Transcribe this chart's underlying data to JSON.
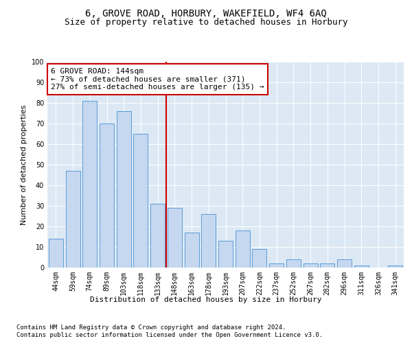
{
  "title1": "6, GROVE ROAD, HORBURY, WAKEFIELD, WF4 6AQ",
  "title2": "Size of property relative to detached houses in Horbury",
  "xlabel": "Distribution of detached houses by size in Horbury",
  "ylabel": "Number of detached properties",
  "categories": [
    "44sqm",
    "59sqm",
    "74sqm",
    "89sqm",
    "103sqm",
    "118sqm",
    "133sqm",
    "148sqm",
    "163sqm",
    "178sqm",
    "193sqm",
    "207sqm",
    "222sqm",
    "237sqm",
    "252sqm",
    "267sqm",
    "282sqm",
    "296sqm",
    "311sqm",
    "326sqm",
    "341sqm"
  ],
  "values": [
    14,
    47,
    81,
    70,
    76,
    65,
    31,
    29,
    17,
    26,
    13,
    18,
    9,
    2,
    4,
    2,
    2,
    4,
    1,
    0,
    1
  ],
  "bar_color": "#c5d8f0",
  "bar_edge_color": "#5b9bd5",
  "vline_x_index": 7,
  "vline_color": "#cc0000",
  "annotation_text": "6 GROVE ROAD: 144sqm\n← 73% of detached houses are smaller (371)\n27% of semi-detached houses are larger (135) →",
  "annotation_box_color": "#ffffff",
  "annotation_box_edge_color": "#cc0000",
  "ylim": [
    0,
    100
  ],
  "yticks": [
    0,
    10,
    20,
    30,
    40,
    50,
    60,
    70,
    80,
    90,
    100
  ],
  "footnote1": "Contains HM Land Registry data © Crown copyright and database right 2024.",
  "footnote2": "Contains public sector information licensed under the Open Government Licence v3.0.",
  "bg_color": "#dce9f5",
  "fig_bg_color": "#ffffff",
  "title1_fontsize": 10,
  "title2_fontsize": 9,
  "xlabel_fontsize": 8,
  "ylabel_fontsize": 8,
  "tick_fontsize": 7,
  "annot_fontsize": 8,
  "footnote_fontsize": 6.5
}
